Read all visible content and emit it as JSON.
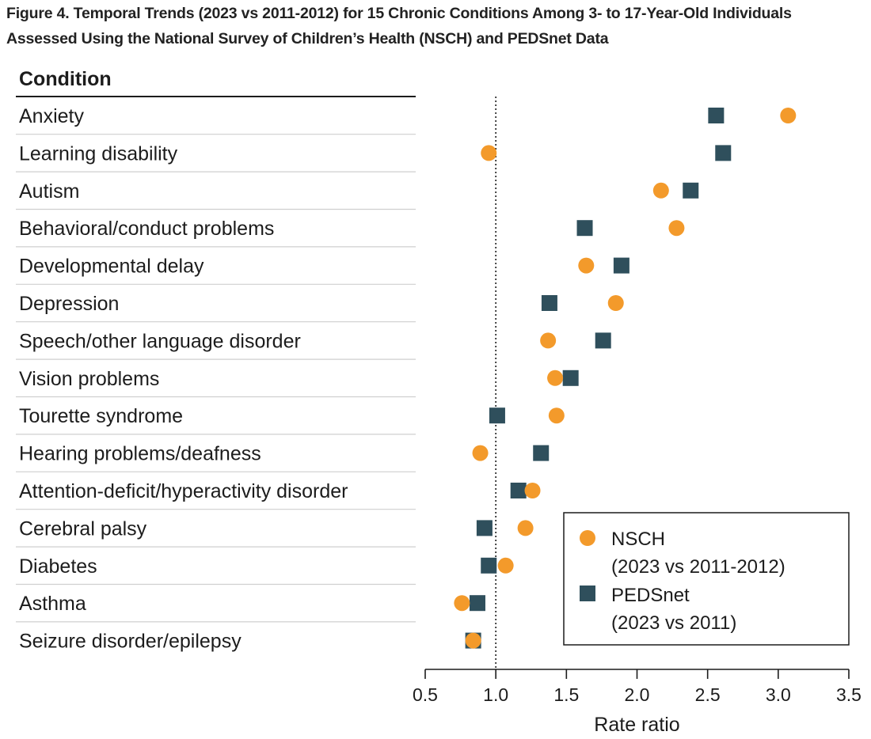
{
  "figure": {
    "title_line1": "Figure 4.  Temporal Trends (2023 vs 2011-2012) for 15 Chronic Conditions Among 3- to 17-Year-Old Individuals",
    "title_line2": "Assessed Using the National Survey of Children’s Health (NSCH) and PEDSnet Data"
  },
  "chart_data": {
    "type": "scatter",
    "column_header": "Condition",
    "xlabel": "Rate ratio",
    "xlim": [
      0.5,
      3.5
    ],
    "xticks": [
      "0.5",
      "1.0",
      "1.5",
      "2.0",
      "2.5",
      "3.0",
      "3.5"
    ],
    "reference_line": 1.0,
    "categories": [
      "Anxiety",
      "Learning disability",
      "Autism",
      "Behavioral/conduct problems",
      "Developmental delay",
      "Depression",
      "Speech/other language disorder",
      "Vision problems",
      "Tourette syndrome",
      "Hearing problems/deafness",
      "Attention-deficit/hyperactivity disorder",
      "Cerebral palsy",
      "Diabetes",
      "Asthma",
      "Seizure disorder/epilepsy"
    ],
    "series": [
      {
        "name": "NSCH",
        "period": "(2023 vs 2011-2012)",
        "marker": "circle",
        "color": "#f39a2b",
        "values": [
          3.07,
          0.95,
          2.17,
          2.28,
          1.64,
          1.85,
          1.37,
          1.42,
          1.43,
          0.89,
          1.26,
          1.21,
          1.07,
          0.76,
          0.84
        ]
      },
      {
        "name": "PEDSnet",
        "period": "(2023 vs 2011)",
        "marker": "square",
        "color": "#2f4f5c",
        "values": [
          2.56,
          2.61,
          2.38,
          1.63,
          1.89,
          1.38,
          1.76,
          1.53,
          1.01,
          1.32,
          1.16,
          0.92,
          0.95,
          0.87,
          0.84
        ]
      }
    ]
  }
}
